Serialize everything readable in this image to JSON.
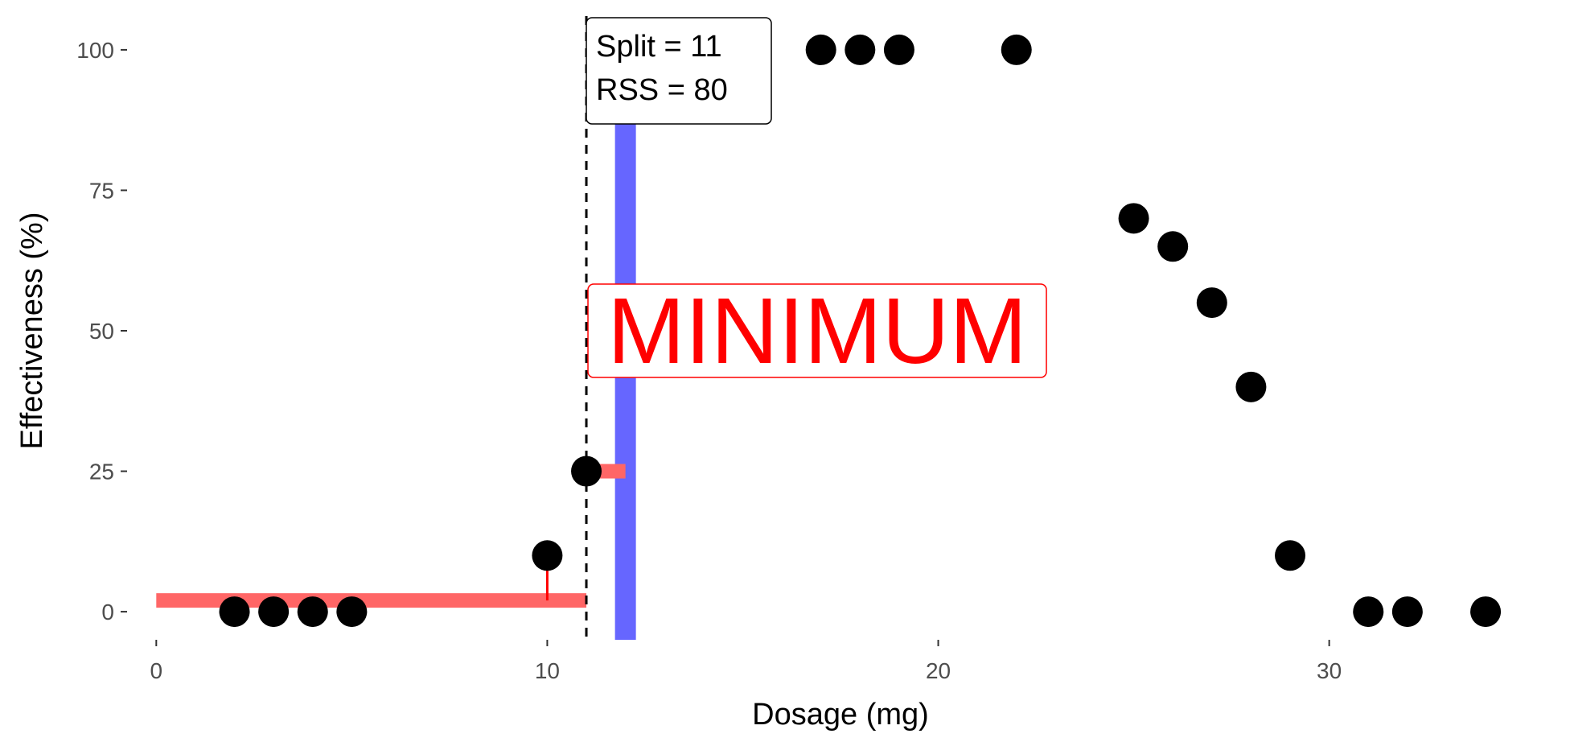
{
  "chart_data": {
    "type": "scatter",
    "title": "",
    "xlabel": "Dosage (mg)",
    "ylabel": "Effectiveness (%)",
    "xlim": [
      -0.5,
      35.5
    ],
    "ylim": [
      -5,
      105
    ],
    "x_ticks": [
      0,
      10,
      20,
      30
    ],
    "x_tick_labels": [
      "0",
      "10",
      "20",
      "30"
    ],
    "y_ticks": [
      0,
      25,
      50,
      75,
      100
    ],
    "y_tick_labels": [
      "0",
      "25",
      "50",
      "75",
      "100"
    ],
    "grid": false,
    "points": [
      {
        "x": 2,
        "y": 0
      },
      {
        "x": 3,
        "y": 0
      },
      {
        "x": 4,
        "y": 0
      },
      {
        "x": 5,
        "y": 0
      },
      {
        "x": 10,
        "y": 10
      },
      {
        "x": 11,
        "y": 25
      },
      {
        "x": 17,
        "y": 100
      },
      {
        "x": 18,
        "y": 100
      },
      {
        "x": 19,
        "y": 100
      },
      {
        "x": 22,
        "y": 100
      },
      {
        "x": 25,
        "y": 70
      },
      {
        "x": 26,
        "y": 65
      },
      {
        "x": 27,
        "y": 55
      },
      {
        "x": 28,
        "y": 40
      },
      {
        "x": 29,
        "y": 10
      },
      {
        "x": 31,
        "y": 0
      },
      {
        "x": 32,
        "y": 0
      },
      {
        "x": 34,
        "y": 0
      }
    ],
    "split_line": {
      "x": 11,
      "style": "dashed"
    },
    "highlight_bar": {
      "x": 12
    },
    "left_mean": {
      "x_start": 0,
      "x_end": 11,
      "y": 2
    },
    "right_mean": {
      "x_start": 11,
      "x_end": 12,
      "y": 25
    },
    "residuals": [
      {
        "x": 2,
        "from": 2,
        "to": 0
      },
      {
        "x": 3,
        "from": 2,
        "to": 0
      },
      {
        "x": 4,
        "from": 2,
        "to": 0
      },
      {
        "x": 5,
        "from": 2,
        "to": 0
      },
      {
        "x": 10,
        "from": 2,
        "to": 10
      }
    ],
    "annotation": {
      "lines": [
        "Split = 11",
        "RSS = 80"
      ],
      "x": 11,
      "y": 100
    },
    "label": {
      "text": "MINIMUM",
      "x": 11,
      "y": 50
    },
    "colors": {
      "points": "#000000",
      "mean_line": "#ff6666",
      "residual": "#ff0000",
      "highlight_bar": "#6666ff",
      "label": "#ff0000"
    }
  }
}
